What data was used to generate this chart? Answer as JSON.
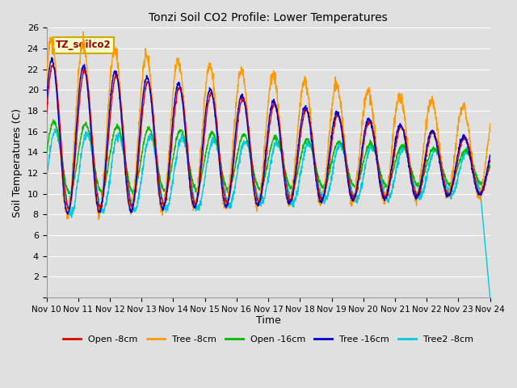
{
  "title": "Tonzi Soil CO2 Profile: Lower Temperatures",
  "xlabel": "Time",
  "ylabel": "Soil Temperatures (C)",
  "ylim": [
    0,
    26
  ],
  "yticks": [
    0,
    2,
    4,
    6,
    8,
    10,
    12,
    14,
    16,
    18,
    20,
    22,
    24,
    26
  ],
  "xtick_labels": [
    "Nov 10",
    "Nov 11",
    "Nov 12",
    "Nov 13",
    "Nov 14",
    "Nov 15",
    "Nov 16",
    "Nov 17",
    "Nov 18",
    "Nov 19",
    "Nov 20",
    "Nov 21",
    "Nov 22",
    "Nov 23",
    "Nov 24"
  ],
  "background_color": "#e0e0e0",
  "plot_bg_color": "#e0e0e0",
  "grid_color": "#ffffff",
  "legend_bg": "#ffffcc",
  "legend_border": "#ccaa00",
  "series": [
    {
      "label": "Open -8cm",
      "color": "#dd0000"
    },
    {
      "label": "Tree -8cm",
      "color": "#ff9900"
    },
    {
      "label": "Open -16cm",
      "color": "#00bb00"
    },
    {
      "label": "Tree -16cm",
      "color": "#0000cc"
    },
    {
      "label": "Tree2 -8cm",
      "color": "#00ccdd"
    }
  ],
  "n_days": 14,
  "ppd": 144
}
